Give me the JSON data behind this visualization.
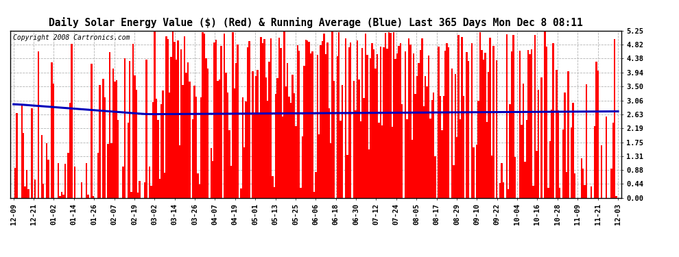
{
  "title": "Daily Solar Energy Value ($) (Red) & Running Average (Blue) Last 365 Days Mon Dec 8 08:11",
  "copyright": "Copyright 2008 Cartronics.com",
  "yticks": [
    0.0,
    0.44,
    0.88,
    1.31,
    1.75,
    2.19,
    2.63,
    3.06,
    3.5,
    3.94,
    4.38,
    4.82,
    5.25
  ],
  "ymin": 0.0,
  "ymax": 5.25,
  "bar_color": "#ff0000",
  "avg_color": "#0000bb",
  "bg_color": "#ffffff",
  "grid_color": "#aaaaaa",
  "title_fontsize": 10.5,
  "copyright_fontsize": 7,
  "tick_label_fontsize": 7.5,
  "n_days": 365,
  "seed": 1234,
  "xtick_labels": [
    "12-09",
    "12-21",
    "01-02",
    "01-14",
    "01-26",
    "02-07",
    "02-19",
    "03-02",
    "03-14",
    "03-26",
    "04-07",
    "04-19",
    "05-01",
    "05-13",
    "05-25",
    "06-06",
    "06-18",
    "06-30",
    "07-12",
    "07-24",
    "08-05",
    "08-17",
    "08-29",
    "09-10",
    "09-22",
    "10-04",
    "10-16",
    "10-28",
    "11-09",
    "11-21",
    "12-03"
  ]
}
